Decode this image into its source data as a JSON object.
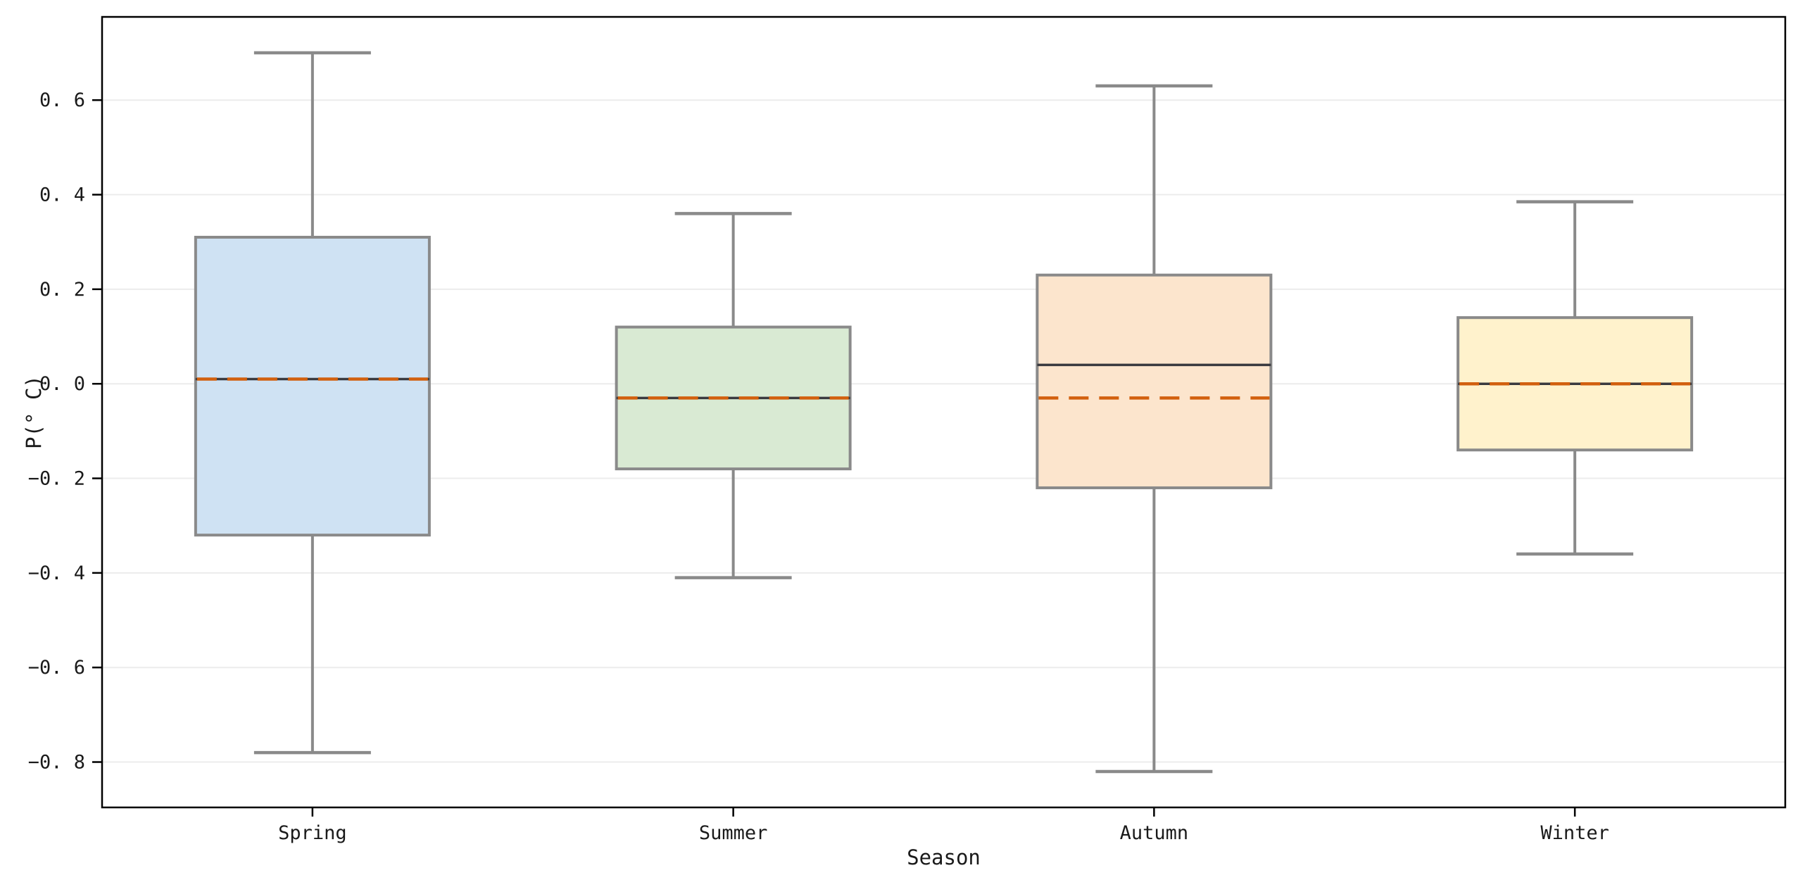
{
  "figure": {
    "background": "#ffffff"
  },
  "chart_data": {
    "type": "boxplot",
    "title": "",
    "xlabel": "Season",
    "ylabel": "P(° C)",
    "categories": [
      "Spring",
      "Summer",
      "Autumn",
      "Winter"
    ],
    "ylim": [
      -0.896,
      0.776
    ],
    "yticks": [
      0.6,
      0.4,
      0.2,
      0.0,
      -0.2,
      -0.4,
      -0.6,
      -0.8
    ],
    "ytick_labels": [
      "0. 6",
      "0. 4",
      "0. 2",
      "0. 0",
      "−0. 2",
      "−0. 4",
      "−0. 6",
      "−0. 8"
    ],
    "grid": "horizontal",
    "legend_position": "none",
    "series": [
      {
        "name": "Spring",
        "whisker_low": -0.78,
        "q1": -0.32,
        "median": 0.01,
        "mean": 0.01,
        "q3": 0.31,
        "whisker_high": 0.7,
        "fill": "#cfe2f3"
      },
      {
        "name": "Summer",
        "whisker_low": -0.41,
        "q1": -0.18,
        "median": -0.03,
        "mean": -0.03,
        "q3": 0.12,
        "whisker_high": 0.36,
        "fill": "#d9ead3"
      },
      {
        "name": "Autumn",
        "whisker_low": -0.82,
        "q1": -0.22,
        "median": 0.04,
        "mean": -0.03,
        "q3": 0.23,
        "whisker_high": 0.63,
        "fill": "#fce5cd"
      },
      {
        "name": "Winter",
        "whisker_low": -0.36,
        "q1": -0.14,
        "median": 0.0,
        "mean": 0.0,
        "q3": 0.14,
        "whisker_high": 0.385,
        "fill": "#fff2cc"
      }
    ],
    "style": {
      "box_edge_color": "#8a8a8a",
      "whisker_color": "#8a8a8a",
      "median_color": "#3a3a3f",
      "mean_color": "#d2600e",
      "mean_line_style": "dashed",
      "grid_color": "#ececec",
      "spine_color": "#000000",
      "text_color": "#1a1a1a"
    }
  }
}
